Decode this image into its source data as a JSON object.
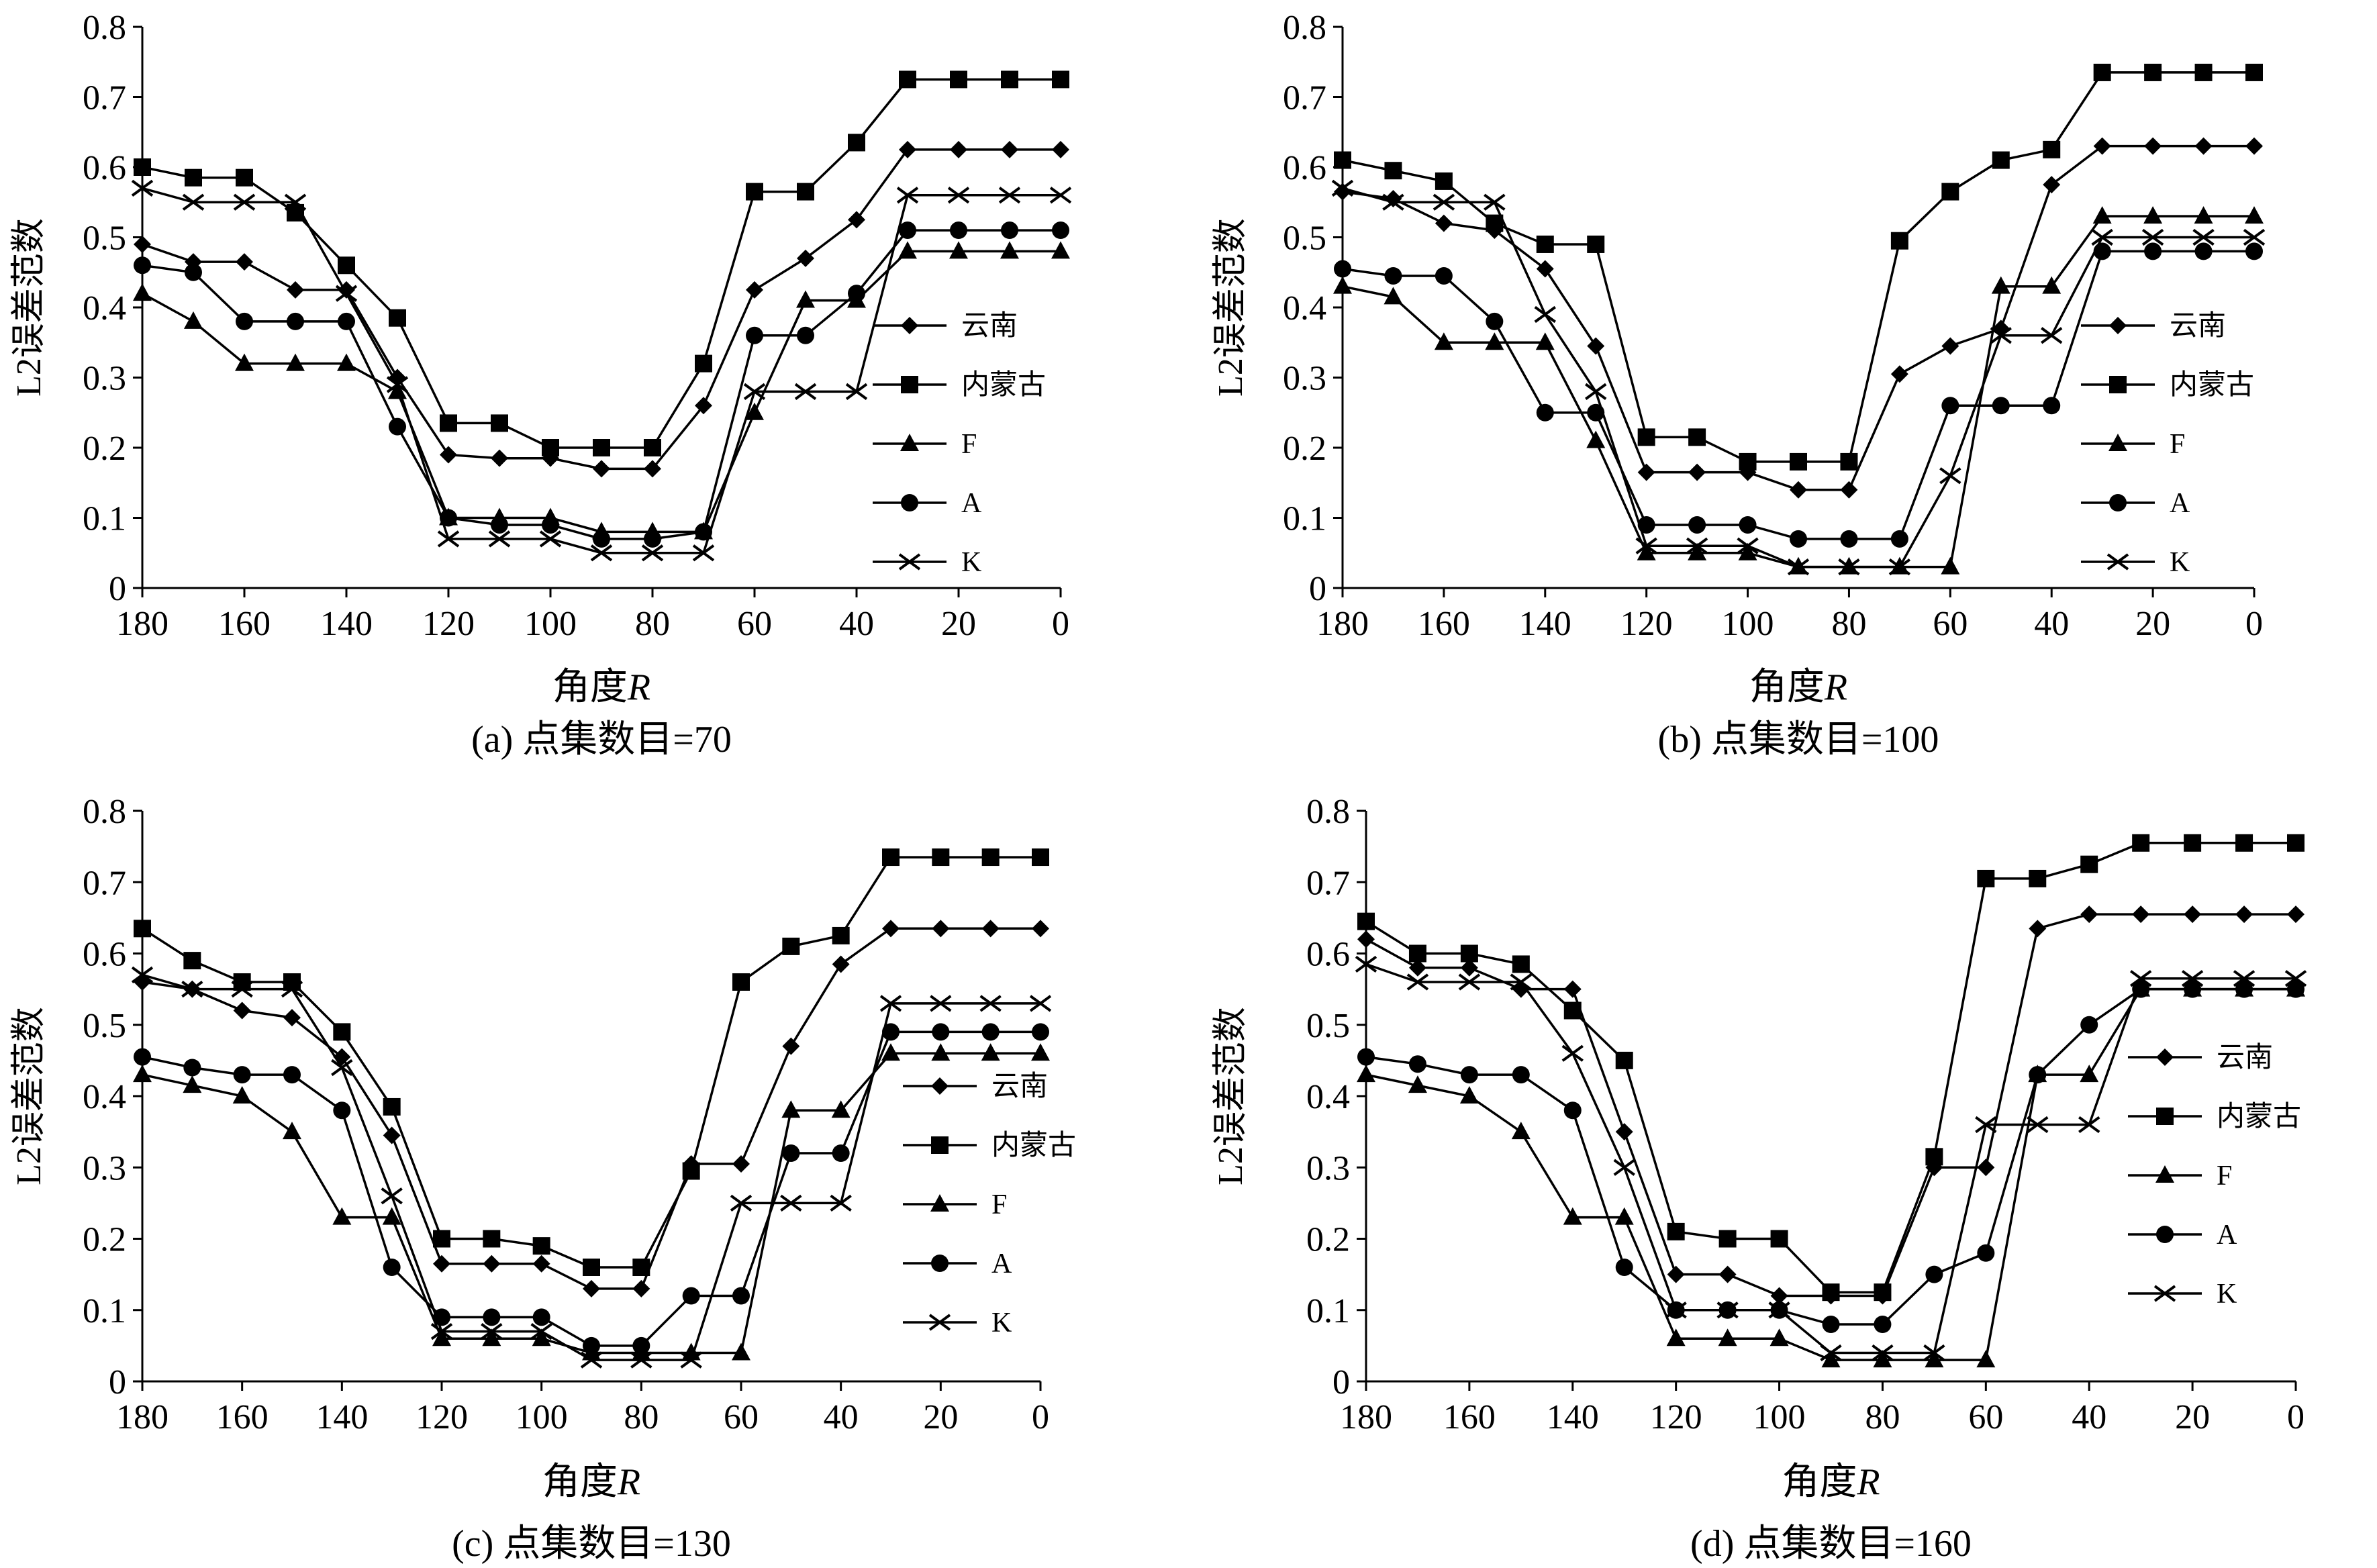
{
  "figure": {
    "panel_size_note": "four line charts of L2 error norm vs angle R for four point-set sizes"
  },
  "chart_data": [
    {
      "type": "line",
      "title": "",
      "caption": "(a) 点集数目=70",
      "xlabel": "角度R",
      "ylabel": "L2误差范数",
      "xlim": [
        180,
        0
      ],
      "ylim": [
        0,
        0.8
      ],
      "x_ticks": [
        180,
        160,
        140,
        120,
        100,
        80,
        60,
        40,
        20,
        0
      ],
      "y_ticks": [
        0,
        0.1,
        0.2,
        0.3,
        0.4,
        0.5,
        0.6,
        0.7,
        0.8
      ],
      "x": [
        180,
        170,
        160,
        150,
        140,
        130,
        120,
        110,
        100,
        90,
        80,
        70,
        60,
        50,
        40,
        30,
        20,
        10,
        0
      ],
      "legend_position": "right",
      "series": [
        {
          "name": "云南",
          "marker": "diamond",
          "values": [
            0.49,
            0.465,
            0.465,
            0.425,
            0.425,
            0.3,
            0.19,
            0.185,
            0.185,
            0.17,
            0.17,
            0.26,
            0.425,
            0.47,
            0.525,
            0.625,
            0.625,
            0.625,
            0.625
          ]
        },
        {
          "name": "内蒙古",
          "marker": "square",
          "values": [
            0.6,
            0.585,
            0.585,
            0.535,
            0.46,
            0.385,
            0.235,
            0.235,
            0.2,
            0.2,
            0.2,
            0.32,
            0.565,
            0.565,
            0.635,
            0.725,
            0.725,
            0.725,
            0.725
          ]
        },
        {
          "name": "F",
          "marker": "triangle",
          "values": [
            0.42,
            0.38,
            0.32,
            0.32,
            0.32,
            0.28,
            0.1,
            0.1,
            0.1,
            0.08,
            0.08,
            0.08,
            0.25,
            0.41,
            0.41,
            0.48,
            0.48,
            0.48,
            0.48
          ]
        },
        {
          "name": "A",
          "marker": "circle",
          "values": [
            0.46,
            0.45,
            0.38,
            0.38,
            0.38,
            0.23,
            0.1,
            0.09,
            0.09,
            0.07,
            0.07,
            0.08,
            0.36,
            0.36,
            0.42,
            0.51,
            0.51,
            0.51,
            0.51
          ]
        },
        {
          "name": "K",
          "marker": "x",
          "values": [
            0.57,
            0.55,
            0.55,
            0.55,
            0.42,
            0.29,
            0.07,
            0.07,
            0.07,
            0.05,
            0.05,
            0.05,
            0.28,
            0.28,
            0.28,
            0.56,
            0.56,
            0.56,
            0.56
          ]
        }
      ]
    },
    {
      "type": "line",
      "title": "",
      "caption": "(b) 点集数目=100",
      "xlabel": "角度R",
      "ylabel": "L2误差范数",
      "xlim": [
        180,
        0
      ],
      "ylim": [
        0,
        0.8
      ],
      "x_ticks": [
        180,
        160,
        140,
        120,
        100,
        80,
        60,
        40,
        20,
        0
      ],
      "y_ticks": [
        0,
        0.1,
        0.2,
        0.3,
        0.4,
        0.5,
        0.6,
        0.7,
        0.8
      ],
      "x": [
        180,
        170,
        160,
        150,
        140,
        130,
        120,
        110,
        100,
        90,
        80,
        70,
        60,
        50,
        40,
        30,
        20,
        10,
        0
      ],
      "legend_position": "right",
      "series": [
        {
          "name": "云南",
          "marker": "diamond",
          "values": [
            0.565,
            0.555,
            0.52,
            0.51,
            0.455,
            0.345,
            0.165,
            0.165,
            0.165,
            0.14,
            0.14,
            0.305,
            0.345,
            0.37,
            0.575,
            0.63,
            0.63,
            0.63,
            0.63
          ]
        },
        {
          "name": "内蒙古",
          "marker": "square",
          "values": [
            0.61,
            0.595,
            0.58,
            0.52,
            0.49,
            0.49,
            0.215,
            0.215,
            0.18,
            0.18,
            0.18,
            0.495,
            0.565,
            0.61,
            0.625,
            0.735,
            0.735,
            0.735,
            0.735
          ]
        },
        {
          "name": "F",
          "marker": "triangle",
          "values": [
            0.43,
            0.415,
            0.35,
            0.35,
            0.35,
            0.21,
            0.05,
            0.05,
            0.05,
            0.03,
            0.03,
            0.03,
            0.03,
            0.43,
            0.43,
            0.53,
            0.53,
            0.53,
            0.53
          ]
        },
        {
          "name": "A",
          "marker": "circle",
          "values": [
            0.455,
            0.445,
            0.445,
            0.38,
            0.25,
            0.25,
            0.09,
            0.09,
            0.09,
            0.07,
            0.07,
            0.07,
            0.26,
            0.26,
            0.26,
            0.48,
            0.48,
            0.48,
            0.48
          ]
        },
        {
          "name": "K",
          "marker": "x",
          "values": [
            0.57,
            0.55,
            0.55,
            0.55,
            0.39,
            0.28,
            0.06,
            0.06,
            0.06,
            0.03,
            0.03,
            0.03,
            0.16,
            0.36,
            0.36,
            0.5,
            0.5,
            0.5,
            0.5
          ]
        }
      ]
    },
    {
      "type": "line",
      "title": "",
      "caption": "(c) 点集数目=130",
      "xlabel": "角度R",
      "ylabel": "L2误差范数",
      "xlim": [
        180,
        0
      ],
      "ylim": [
        0,
        0.8
      ],
      "x_ticks": [
        180,
        160,
        140,
        120,
        100,
        80,
        60,
        40,
        20,
        0
      ],
      "y_ticks": [
        0,
        0.1,
        0.2,
        0.3,
        0.4,
        0.5,
        0.6,
        0.7,
        0.8
      ],
      "x": [
        180,
        170,
        160,
        150,
        140,
        130,
        120,
        110,
        100,
        90,
        80,
        70,
        60,
        50,
        40,
        30,
        20,
        10,
        0
      ],
      "legend_position": "right",
      "series": [
        {
          "name": "云南",
          "marker": "diamond",
          "values": [
            0.56,
            0.55,
            0.52,
            0.51,
            0.455,
            0.345,
            0.165,
            0.165,
            0.165,
            0.13,
            0.13,
            0.305,
            0.305,
            0.47,
            0.585,
            0.635,
            0.635,
            0.635,
            0.635
          ]
        },
        {
          "name": "内蒙古",
          "marker": "square",
          "values": [
            0.635,
            0.59,
            0.56,
            0.56,
            0.49,
            0.385,
            0.2,
            0.2,
            0.19,
            0.16,
            0.16,
            0.295,
            0.56,
            0.61,
            0.625,
            0.735,
            0.735,
            0.735,
            0.735
          ]
        },
        {
          "name": "F",
          "marker": "triangle",
          "values": [
            0.43,
            0.415,
            0.4,
            0.35,
            0.23,
            0.23,
            0.06,
            0.06,
            0.06,
            0.04,
            0.04,
            0.04,
            0.04,
            0.38,
            0.38,
            0.46,
            0.46,
            0.46,
            0.46
          ]
        },
        {
          "name": "A",
          "marker": "circle",
          "values": [
            0.455,
            0.44,
            0.43,
            0.43,
            0.38,
            0.16,
            0.09,
            0.09,
            0.09,
            0.05,
            0.05,
            0.12,
            0.12,
            0.32,
            0.32,
            0.49,
            0.49,
            0.49,
            0.49
          ]
        },
        {
          "name": "K",
          "marker": "x",
          "values": [
            0.57,
            0.55,
            0.55,
            0.55,
            0.44,
            0.26,
            0.07,
            0.07,
            0.07,
            0.03,
            0.03,
            0.03,
            0.25,
            0.25,
            0.25,
            0.53,
            0.53,
            0.53,
            0.53
          ]
        }
      ]
    },
    {
      "type": "line",
      "title": "",
      "caption": "(d) 点集数目=160",
      "xlabel": "角度R",
      "ylabel": "L2误差范数",
      "xlim": [
        180,
        0
      ],
      "ylim": [
        0,
        0.8
      ],
      "x_ticks": [
        180,
        160,
        140,
        120,
        100,
        80,
        60,
        40,
        20,
        0
      ],
      "y_ticks": [
        0,
        0.1,
        0.2,
        0.3,
        0.4,
        0.5,
        0.6,
        0.7,
        0.8
      ],
      "x": [
        180,
        170,
        160,
        150,
        140,
        130,
        120,
        110,
        100,
        90,
        80,
        70,
        60,
        50,
        40,
        30,
        20,
        10,
        0
      ],
      "legend_position": "right",
      "series": [
        {
          "name": "云南",
          "marker": "diamond",
          "values": [
            0.62,
            0.58,
            0.58,
            0.55,
            0.55,
            0.35,
            0.15,
            0.15,
            0.12,
            0.12,
            0.12,
            0.3,
            0.3,
            0.635,
            0.655,
            0.655,
            0.655,
            0.655,
            0.655
          ]
        },
        {
          "name": "内蒙古",
          "marker": "square",
          "values": [
            0.645,
            0.6,
            0.6,
            0.585,
            0.52,
            0.45,
            0.21,
            0.2,
            0.2,
            0.125,
            0.125,
            0.315,
            0.705,
            0.705,
            0.725,
            0.755,
            0.755,
            0.755,
            0.755
          ]
        },
        {
          "name": "F",
          "marker": "triangle",
          "values": [
            0.43,
            0.415,
            0.4,
            0.35,
            0.23,
            0.23,
            0.06,
            0.06,
            0.06,
            0.03,
            0.03,
            0.03,
            0.03,
            0.43,
            0.43,
            0.55,
            0.55,
            0.55,
            0.55
          ]
        },
        {
          "name": "A",
          "marker": "circle",
          "values": [
            0.455,
            0.445,
            0.43,
            0.43,
            0.38,
            0.16,
            0.1,
            0.1,
            0.1,
            0.08,
            0.08,
            0.15,
            0.18,
            0.43,
            0.5,
            0.55,
            0.55,
            0.55,
            0.55
          ]
        },
        {
          "name": "K",
          "marker": "x",
          "values": [
            0.585,
            0.56,
            0.56,
            0.56,
            0.46,
            0.3,
            0.1,
            0.1,
            0.1,
            0.04,
            0.04,
            0.04,
            0.36,
            0.36,
            0.36,
            0.565,
            0.565,
            0.565,
            0.565
          ]
        }
      ]
    }
  ]
}
